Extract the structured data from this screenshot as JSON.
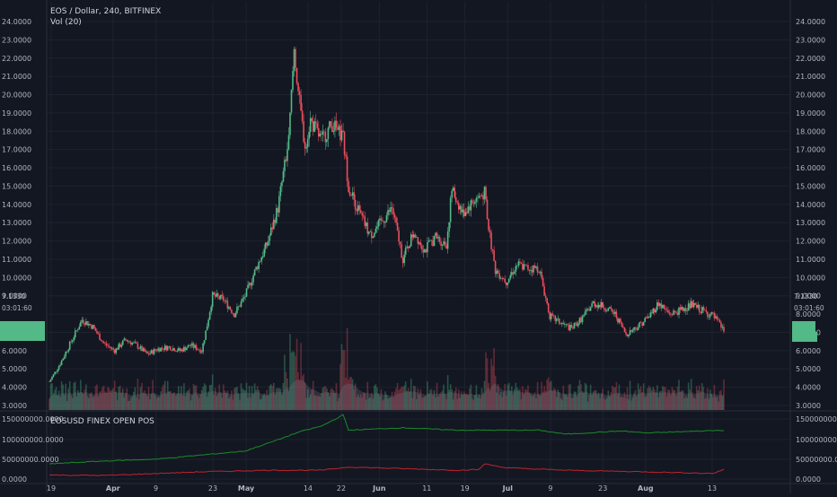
{
  "chart": {
    "symbol_title": "EOS / Dollar, 240, BITFINEX",
    "volume_label": "Vol (20)",
    "current_price": "7.1330",
    "countdown": "03:01:60",
    "colors": {
      "background": "#131722",
      "up": "#53b987",
      "down": "#eb4d5c",
      "grid": "#1e2230",
      "axis_text": "#b2b5be",
      "volume_ma": "#787b86",
      "longs": "#1b8a2a",
      "shorts": "#c0232f"
    }
  },
  "subpane": {
    "title": "EOSUSD FINEX OPEN POS",
    "y_ticks": [
      "150000000.0000",
      "100000000.0000",
      "50000000.0000",
      "0.0000"
    ]
  },
  "price_axis": {
    "ticks": [
      "24.0000",
      "23.0000",
      "22.0000",
      "21.0000",
      "20.0000",
      "19.0000",
      "18.0000",
      "17.0000",
      "16.0000",
      "15.0000",
      "14.0000",
      "13.0000",
      "12.0000",
      "11.0000",
      "10.0000",
      "9.0000",
      "8.0000",
      "7.0000",
      "6.0000",
      "5.0000",
      "4.0000",
      "3.0000"
    ],
    "left_ticks": [
      "24.0000",
      "23.0000",
      "22.0000",
      "21.0000",
      "20.0000",
      "19.0000",
      "18.0000",
      "17.0000",
      "16.0000",
      "15.0000",
      "14.0000",
      "13.0000",
      "12.0000",
      "11.0000",
      "10.0000",
      "9.0000",
      "6.0000",
      "5.0000",
      "4.0000",
      "3.0000"
    ]
  },
  "time_axis": {
    "labels": [
      "19",
      "Apr",
      "9",
      "23",
      "May",
      "14",
      "22",
      "Jun",
      "11",
      "19",
      "Jul",
      "9",
      "23",
      "Aug",
      "13"
    ],
    "bold": [
      "Apr",
      "May",
      "Jun",
      "Jul",
      "Aug"
    ]
  },
  "chart_data": {
    "type": "candlestick",
    "ylim": [
      3,
      24
    ],
    "price_anchors": [
      {
        "d": 0,
        "p": 4.3
      },
      {
        "d": 2,
        "p": 5.3
      },
      {
        "d": 4,
        "p": 6.5
      },
      {
        "d": 6,
        "p": 7.7
      },
      {
        "d": 8,
        "p": 7.3
      },
      {
        "d": 10,
        "p": 6.4
      },
      {
        "d": 12,
        "p": 6.0
      },
      {
        "d": 14,
        "p": 6.6
      },
      {
        "d": 16,
        "p": 6.3
      },
      {
        "d": 18,
        "p": 5.8
      },
      {
        "d": 20,
        "p": 6.1
      },
      {
        "d": 22,
        "p": 6.2
      },
      {
        "d": 24,
        "p": 6.0
      },
      {
        "d": 26,
        "p": 6.3
      },
      {
        "d": 28,
        "p": 6.0
      },
      {
        "d": 29,
        "p": 7.4
      },
      {
        "d": 30,
        "p": 9.0
      },
      {
        "d": 32,
        "p": 8.8
      },
      {
        "d": 34,
        "p": 8.0
      },
      {
        "d": 36,
        "p": 9.0
      },
      {
        "d": 38,
        "p": 10.5
      },
      {
        "d": 40,
        "p": 11.8
      },
      {
        "d": 42,
        "p": 13.8
      },
      {
        "d": 44,
        "p": 17.5
      },
      {
        "d": 45,
        "p": 22.5
      },
      {
        "d": 46,
        "p": 19.5
      },
      {
        "d": 47,
        "p": 17.2
      },
      {
        "d": 48,
        "p": 18.6
      },
      {
        "d": 50,
        "p": 17.5
      },
      {
        "d": 52,
        "p": 18.4
      },
      {
        "d": 54,
        "p": 17.6
      },
      {
        "d": 55,
        "p": 15.0
      },
      {
        "d": 57,
        "p": 13.5
      },
      {
        "d": 59,
        "p": 12.3
      },
      {
        "d": 61,
        "p": 13.0
      },
      {
        "d": 63,
        "p": 13.8
      },
      {
        "d": 65,
        "p": 11.0
      },
      {
        "d": 67,
        "p": 12.5
      },
      {
        "d": 69,
        "p": 11.5
      },
      {
        "d": 71,
        "p": 12.2
      },
      {
        "d": 73,
        "p": 11.8
      },
      {
        "d": 74,
        "p": 14.8
      },
      {
        "d": 76,
        "p": 13.5
      },
      {
        "d": 78,
        "p": 14.2
      },
      {
        "d": 80,
        "p": 14.6
      },
      {
        "d": 81,
        "p": 12.2
      },
      {
        "d": 82,
        "p": 10.4
      },
      {
        "d": 84,
        "p": 9.8
      },
      {
        "d": 86,
        "p": 10.7
      },
      {
        "d": 88,
        "p": 10.5
      },
      {
        "d": 90,
        "p": 10.5
      },
      {
        "d": 92,
        "p": 7.9
      },
      {
        "d": 94,
        "p": 7.5
      },
      {
        "d": 96,
        "p": 7.2
      },
      {
        "d": 98,
        "p": 7.8
      },
      {
        "d": 100,
        "p": 8.6
      },
      {
        "d": 102,
        "p": 8.4
      },
      {
        "d": 104,
        "p": 8.0
      },
      {
        "d": 106,
        "p": 6.9
      },
      {
        "d": 108,
        "p": 7.3
      },
      {
        "d": 110,
        "p": 7.8
      },
      {
        "d": 112,
        "p": 8.6
      },
      {
        "d": 114,
        "p": 8.0
      },
      {
        "d": 116,
        "p": 8.2
      },
      {
        "d": 118,
        "p": 8.5
      },
      {
        "d": 120,
        "p": 8.2
      },
      {
        "d": 122,
        "p": 7.9
      },
      {
        "d": 124,
        "p": 7.1
      }
    ],
    "open_interest": {
      "longs": [
        {
          "d": 0,
          "v": 38
        },
        {
          "d": 10,
          "v": 45
        },
        {
          "d": 20,
          "v": 50
        },
        {
          "d": 28,
          "v": 60
        },
        {
          "d": 36,
          "v": 70
        },
        {
          "d": 42,
          "v": 98
        },
        {
          "d": 46,
          "v": 118
        },
        {
          "d": 50,
          "v": 132
        },
        {
          "d": 54,
          "v": 160
        },
        {
          "d": 55,
          "v": 122
        },
        {
          "d": 65,
          "v": 128
        },
        {
          "d": 75,
          "v": 122
        },
        {
          "d": 85,
          "v": 122
        },
        {
          "d": 90,
          "v": 122
        },
        {
          "d": 95,
          "v": 112
        },
        {
          "d": 105,
          "v": 120
        },
        {
          "d": 110,
          "v": 115
        },
        {
          "d": 124,
          "v": 122
        }
      ],
      "shorts": [
        {
          "d": 0,
          "v": 10
        },
        {
          "d": 10,
          "v": 9
        },
        {
          "d": 20,
          "v": 14
        },
        {
          "d": 28,
          "v": 18
        },
        {
          "d": 40,
          "v": 22
        },
        {
          "d": 50,
          "v": 22
        },
        {
          "d": 55,
          "v": 30
        },
        {
          "d": 65,
          "v": 26
        },
        {
          "d": 75,
          "v": 22
        },
        {
          "d": 79,
          "v": 24
        },
        {
          "d": 80,
          "v": 38
        },
        {
          "d": 84,
          "v": 28
        },
        {
          "d": 95,
          "v": 22
        },
        {
          "d": 110,
          "v": 18
        },
        {
          "d": 122,
          "v": 14
        },
        {
          "d": 124,
          "v": 24
        }
      ]
    }
  }
}
